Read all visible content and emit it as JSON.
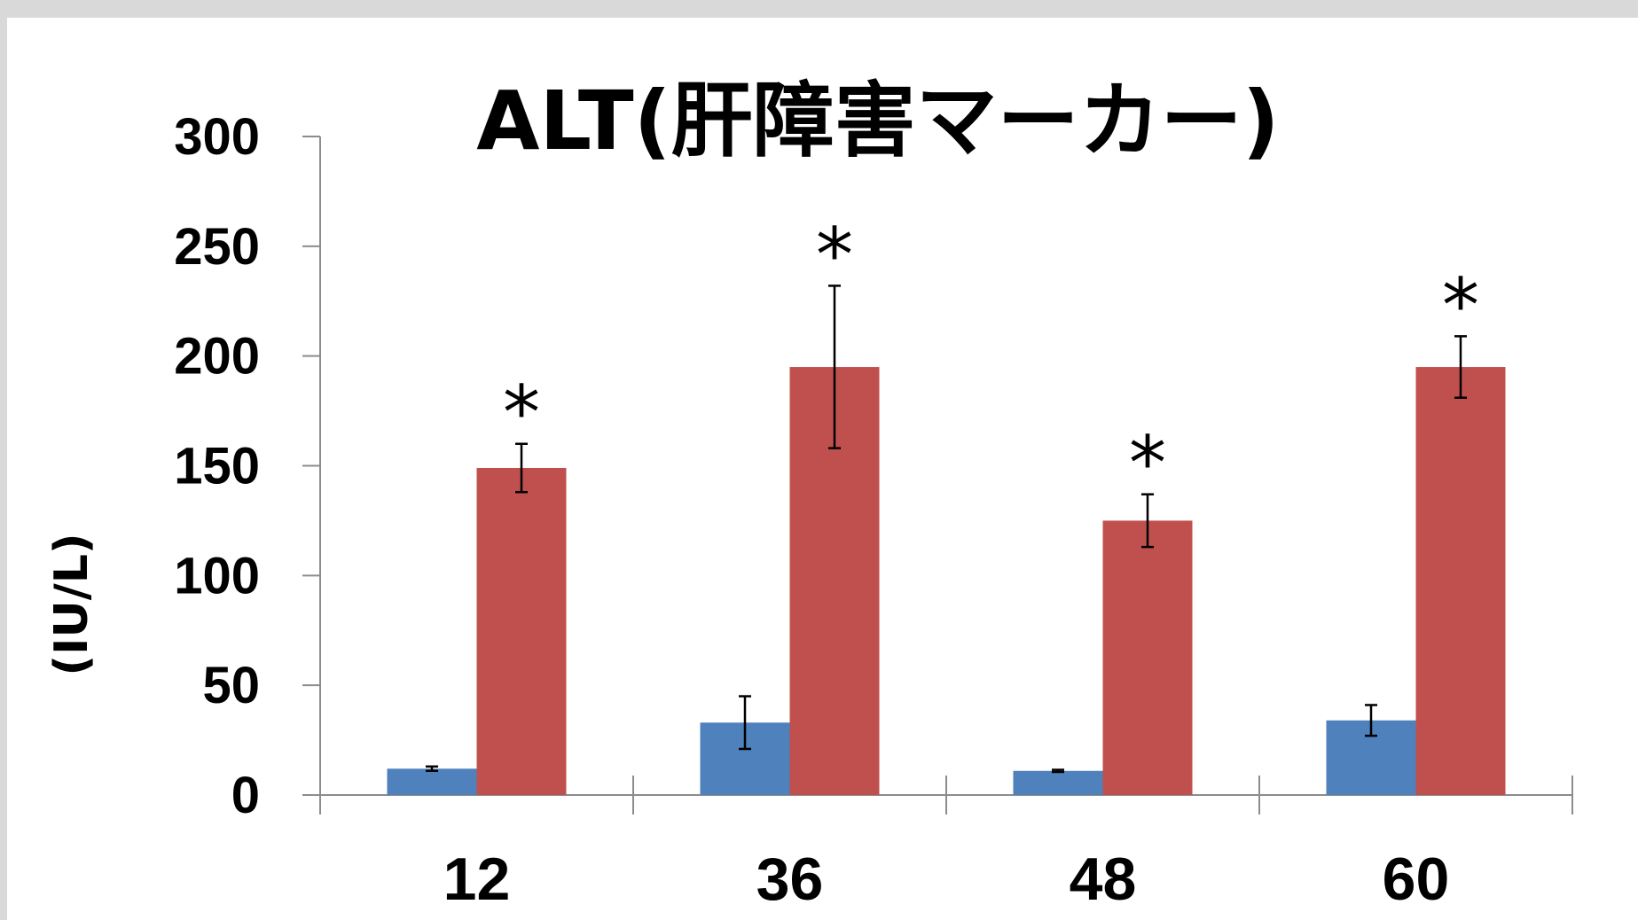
{
  "chart_data": {
    "type": "bar",
    "title": "ALT(肝障害マーカー)",
    "ylabel": "(IU/L)",
    "xlabel": "",
    "ylim": [
      0,
      300
    ],
    "yticks": [
      "0",
      "50",
      "100",
      "150",
      "200",
      "250",
      "300"
    ],
    "categories": [
      "12",
      "36",
      "48",
      "60"
    ],
    "series": [
      {
        "color": "#4f81bd",
        "values": [
          12,
          33,
          11,
          34
        ],
        "errors": [
          1,
          12,
          0.5,
          7
        ]
      },
      {
        "color": "#c0504d",
        "values": [
          149,
          195,
          125,
          195
        ],
        "errors": [
          11,
          37,
          12,
          14
        ]
      }
    ],
    "annotations": [
      "*",
      "*",
      "*",
      "*"
    ],
    "grid": false,
    "legend": "none"
  }
}
